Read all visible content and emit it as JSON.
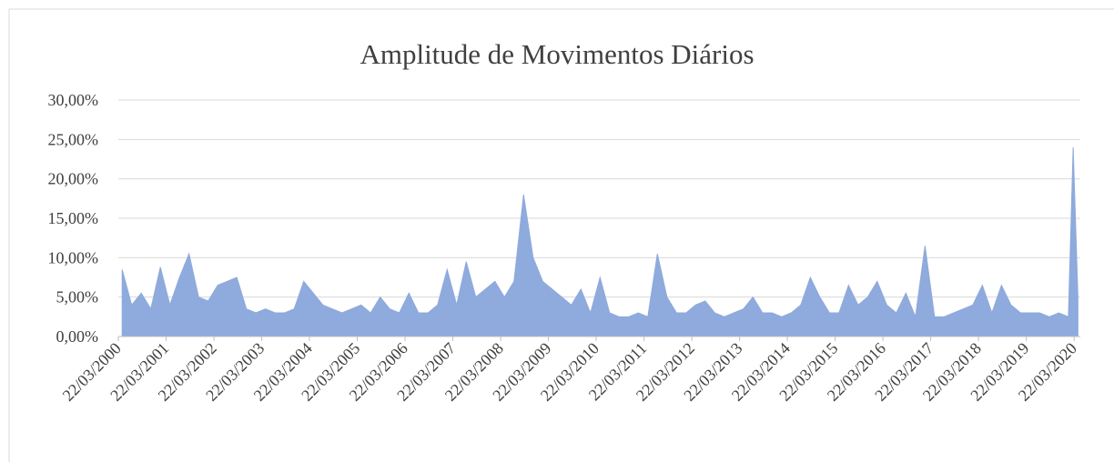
{
  "chart_data": {
    "type": "area",
    "title": "Amplitude de Movimentos Diários",
    "x": [
      2000.3,
      2000.5,
      2000.7,
      2000.9,
      2001.1,
      2001.3,
      2001.5,
      2001.7,
      2001.9,
      2002.1,
      2002.3,
      2002.5,
      2002.7,
      2002.9,
      2003.1,
      2003.3,
      2003.5,
      2003.7,
      2003.9,
      2004.1,
      2004.3,
      2004.5,
      2004.7,
      2004.9,
      2005.1,
      2005.3,
      2005.5,
      2005.7,
      2005.9,
      2006.1,
      2006.3,
      2006.5,
      2006.7,
      2006.9,
      2007.1,
      2007.3,
      2007.5,
      2007.7,
      2007.9,
      2008.1,
      2008.3,
      2008.5,
      2008.7,
      2008.9,
      2009.1,
      2009.3,
      2009.5,
      2009.7,
      2009.9,
      2010.1,
      2010.3,
      2010.5,
      2010.7,
      2010.9,
      2011.1,
      2011.3,
      2011.5,
      2011.7,
      2011.9,
      2012.1,
      2012.3,
      2012.5,
      2012.7,
      2012.9,
      2013.1,
      2013.3,
      2013.5,
      2013.7,
      2013.9,
      2014.1,
      2014.3,
      2014.5,
      2014.7,
      2014.9,
      2015.1,
      2015.3,
      2015.5,
      2015.7,
      2015.9,
      2016.1,
      2016.3,
      2016.5,
      2016.7,
      2016.9,
      2017.1,
      2017.3,
      2017.5,
      2017.7,
      2017.9,
      2018.1,
      2018.3,
      2018.5,
      2018.7,
      2018.9,
      2019.1,
      2019.3,
      2019.5,
      2019.7,
      2019.9,
      2020.1,
      2020.2,
      2020.3
    ],
    "series": [
      {
        "name": "Amplitude",
        "color": "#8faadc",
        "values": [
          8.5,
          4,
          5.5,
          3.5,
          8.8,
          4,
          7.5,
          10.5,
          5,
          4.5,
          6.5,
          7,
          7.5,
          3.5,
          3,
          3.5,
          3,
          3,
          3.5,
          7,
          5.5,
          4,
          3.5,
          3,
          3.5,
          4,
          3,
          5,
          3.5,
          3,
          5.5,
          3,
          3,
          4,
          8.5,
          4,
          9.5,
          5,
          6,
          7,
          5,
          7,
          18,
          10,
          7,
          6,
          5,
          4,
          6,
          3,
          7.5,
          3,
          2.5,
          2.5,
          3,
          2.5,
          10.5,
          5,
          3,
          3,
          4,
          4.5,
          3,
          2.5,
          3,
          3.5,
          5,
          3,
          3,
          2.5,
          3,
          4,
          7.5,
          5,
          3,
          3,
          6.5,
          4,
          5,
          7,
          4,
          3,
          5.5,
          2.5,
          11.5,
          2.5,
          2.5,
          3,
          3.5,
          4,
          6.5,
          3,
          6.5,
          4,
          3,
          3,
          3,
          2.5,
          3,
          2.5,
          24,
          5
        ]
      }
    ],
    "xlim": [
      2000.22,
      2020.35
    ],
    "xticks": [
      {
        "value": 2000.22,
        "label": "22/03/2000"
      },
      {
        "value": 2001.22,
        "label": "22/03/2001"
      },
      {
        "value": 2002.22,
        "label": "22/03/2002"
      },
      {
        "value": 2003.22,
        "label": "22/03/2003"
      },
      {
        "value": 2004.22,
        "label": "22/03/2004"
      },
      {
        "value": 2005.22,
        "label": "22/03/2005"
      },
      {
        "value": 2006.22,
        "label": "22/03/2006"
      },
      {
        "value": 2007.22,
        "label": "22/03/2007"
      },
      {
        "value": 2008.22,
        "label": "22/03/2008"
      },
      {
        "value": 2009.22,
        "label": "22/03/2009"
      },
      {
        "value": 2010.22,
        "label": "22/03/2010"
      },
      {
        "value": 2011.22,
        "label": "22/03/2011"
      },
      {
        "value": 2012.22,
        "label": "22/03/2012"
      },
      {
        "value": 2013.22,
        "label": "22/03/2013"
      },
      {
        "value": 2014.22,
        "label": "22/03/2014"
      },
      {
        "value": 2015.22,
        "label": "22/03/2015"
      },
      {
        "value": 2016.22,
        "label": "22/03/2016"
      },
      {
        "value": 2017.22,
        "label": "22/03/2017"
      },
      {
        "value": 2018.22,
        "label": "22/03/2018"
      },
      {
        "value": 2019.22,
        "label": "22/03/2019"
      },
      {
        "value": 2020.22,
        "label": "22/03/2020"
      }
    ],
    "ylim": [
      0,
      30
    ],
    "yticks": [
      {
        "value": 0,
        "label": "0,00%"
      },
      {
        "value": 5,
        "label": "5,00%"
      },
      {
        "value": 10,
        "label": "10,00%"
      },
      {
        "value": 15,
        "label": "15,00%"
      },
      {
        "value": 20,
        "label": "20,00%"
      },
      {
        "value": 25,
        "label": "25,00%"
      },
      {
        "value": 30,
        "label": "30,00%"
      }
    ],
    "grid": true
  }
}
